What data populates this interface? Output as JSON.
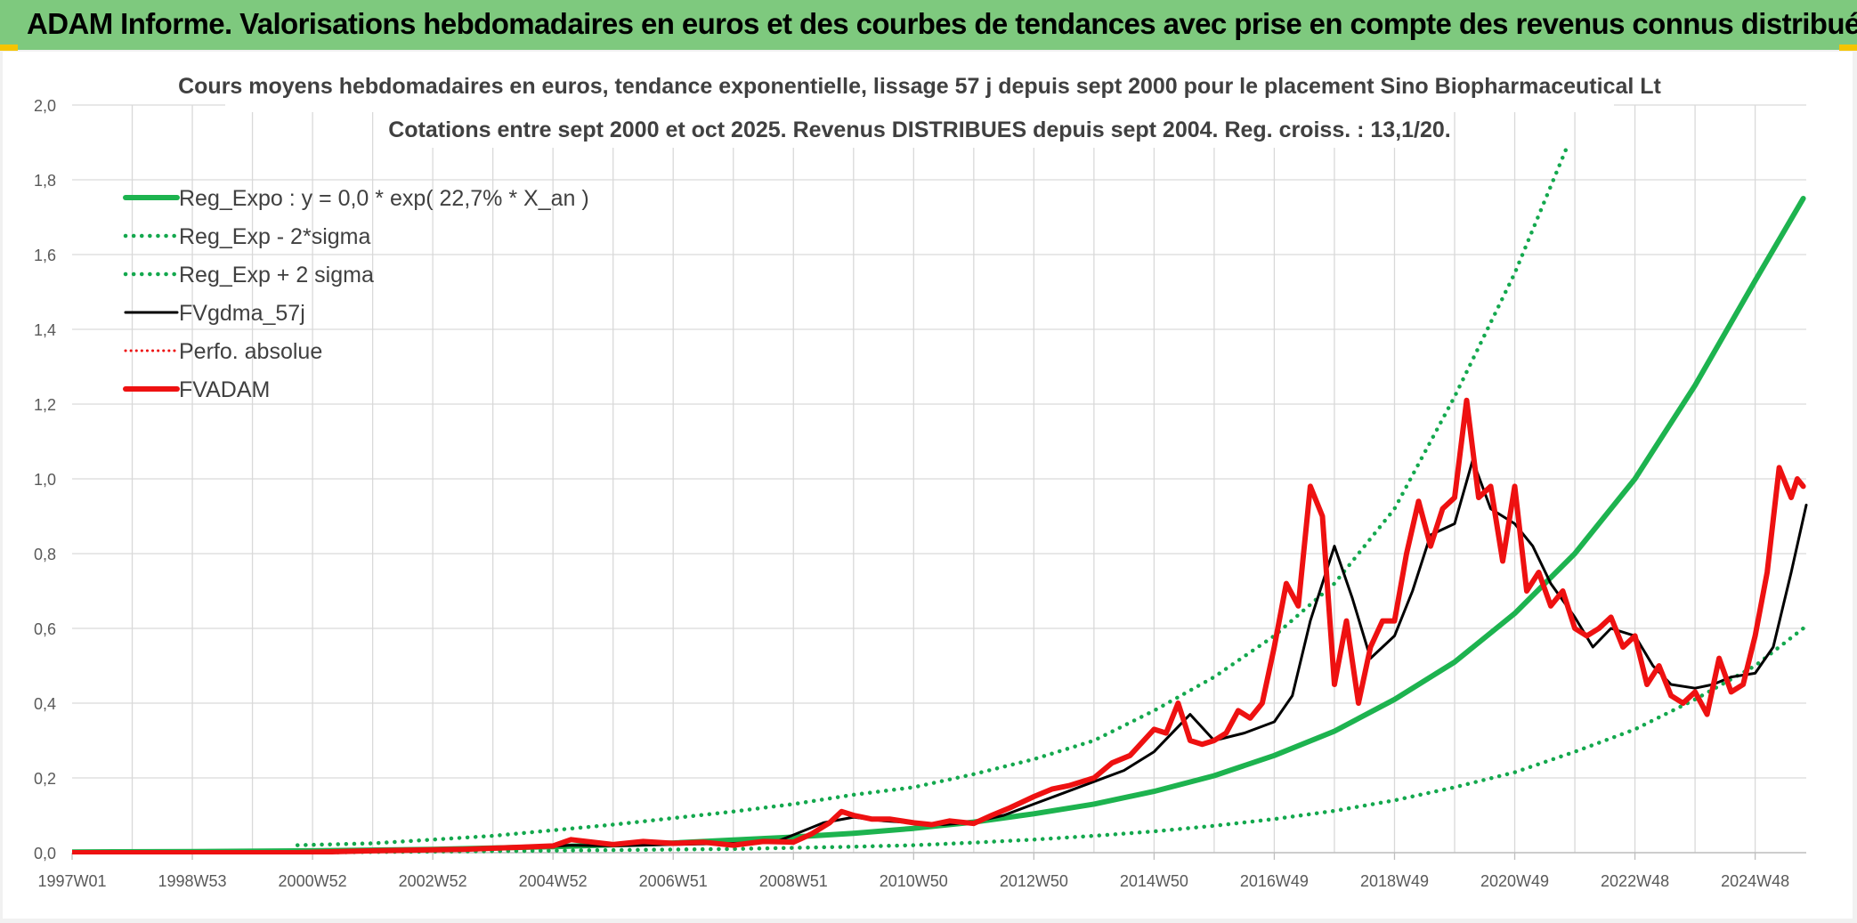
{
  "banner": {
    "title": "ADAM Informe. Valorisations hebdomadaires en euros et des courbes de tendances avec prise en compte des revenus connus distribués"
  },
  "colors": {
    "banner_bg": "#7ec97e",
    "reg_expo": "#1db34f",
    "band": "#14a84e",
    "fvgdma": "#000000",
    "fvadam": "#ee1111",
    "perfo": "#ee1111",
    "grid": "#d9d9d9"
  },
  "chart_data": {
    "type": "line",
    "title": "Cours moyens hebdomadaires en euros, tendance exponentielle, lissage 57 j depuis sept 2000 pour le placement Sino Biopharmaceutical Lt",
    "subtitle": "Cotations entre sept 2000 et oct 2025. Revenus DISTRIBUES depuis sept 2004. Reg. croiss. : 13,1/20.",
    "xlabel": "",
    "ylabel": "",
    "ylim": [
      0,
      2.0
    ],
    "xlim": [
      1997.0,
      2025.85
    ],
    "y_ticks": [
      "0,0",
      "0,2",
      "0,4",
      "0,6",
      "0,8",
      "1,0",
      "1,2",
      "1,4",
      "1,6",
      "1,8",
      "2,0"
    ],
    "x_ticks": [
      {
        "label": "1997W01",
        "x": 1997.0
      },
      {
        "label": "1998W53",
        "x": 1999.0
      },
      {
        "label": "2000W52",
        "x": 2001.0
      },
      {
        "label": "2002W52",
        "x": 2003.0
      },
      {
        "label": "2004W52",
        "x": 2005.0
      },
      {
        "label": "2006W51",
        "x": 2007.0
      },
      {
        "label": "2008W51",
        "x": 2009.0
      },
      {
        "label": "2010W50",
        "x": 2011.0
      },
      {
        "label": "2012W50",
        "x": 2013.0
      },
      {
        "label": "2014W50",
        "x": 2015.0
      },
      {
        "label": "2016W49",
        "x": 2017.0
      },
      {
        "label": "2018W49",
        "x": 2019.0
      },
      {
        "label": "2020W49",
        "x": 2021.0
      },
      {
        "label": "2022W48",
        "x": 2023.0
      },
      {
        "label": "2024W48",
        "x": 2025.0
      }
    ],
    "grid": true,
    "legend_position": "top-left",
    "series": [
      {
        "name": "Reg_Expo : y = 0,0 * exp( 22,7% *  X_an )",
        "style": "solid-thick",
        "color": "#1db34f",
        "x": [
          1997.0,
          1999.0,
          2001.0,
          2003.0,
          2005.0,
          2007.0,
          2009.0,
          2010.0,
          2011.0,
          2012.0,
          2013.0,
          2014.0,
          2015.0,
          2016.0,
          2017.0,
          2018.0,
          2019.0,
          2020.0,
          2021.0,
          2022.0,
          2023.0,
          2024.0,
          2025.0,
          2025.8
        ],
        "values": [
          0.002,
          0.003,
          0.005,
          0.009,
          0.016,
          0.026,
          0.042,
          0.052,
          0.065,
          0.082,
          0.104,
          0.13,
          0.164,
          0.206,
          0.26,
          0.325,
          0.41,
          0.51,
          0.64,
          0.8,
          1.0,
          1.25,
          1.53,
          1.75
        ]
      },
      {
        "name": "Reg_Exp - 2*sigma",
        "style": "dotted",
        "color": "#14a84e",
        "x": [
          2000.75,
          2002.0,
          2004.0,
          2006.0,
          2008.0,
          2010.0,
          2011.0,
          2012.0,
          2013.0,
          2014.0,
          2015.0,
          2016.0,
          2017.0,
          2018.0,
          2019.0,
          2020.0,
          2021.0,
          2022.0,
          2023.0,
          2024.0,
          2025.0,
          2025.8
        ],
        "values": [
          0.0,
          0.002,
          0.004,
          0.007,
          0.01,
          0.016,
          0.02,
          0.027,
          0.035,
          0.045,
          0.057,
          0.072,
          0.09,
          0.112,
          0.14,
          0.175,
          0.215,
          0.27,
          0.33,
          0.41,
          0.5,
          0.6
        ]
      },
      {
        "name": "Reg_Exp + 2 sigma",
        "style": "dotted",
        "color": "#14a84e",
        "x": [
          2000.75,
          2002.0,
          2004.0,
          2006.0,
          2008.0,
          2009.0,
          2010.0,
          2011.0,
          2012.0,
          2013.0,
          2014.0,
          2015.0,
          2016.0,
          2017.0,
          2018.0,
          2019.0,
          2020.0,
          2021.0,
          2021.85
        ],
        "values": [
          0.02,
          0.025,
          0.045,
          0.075,
          0.11,
          0.13,
          0.155,
          0.175,
          0.21,
          0.25,
          0.3,
          0.38,
          0.47,
          0.58,
          0.72,
          0.92,
          1.22,
          1.55,
          1.88
        ]
      },
      {
        "name": "FVgdma_57j",
        "style": "solid",
        "color": "#000000",
        "x": [
          1997.0,
          2000.7,
          2002.0,
          2003.5,
          2004.5,
          2005.3,
          2006.0,
          2007.0,
          2008.0,
          2008.7,
          2009.5,
          2010.0,
          2010.5,
          2011.0,
          2011.5,
          2012.0,
          2012.5,
          2013.0,
          2013.5,
          2014.0,
          2014.5,
          2015.0,
          2015.3,
          2015.6,
          2016.0,
          2016.5,
          2017.0,
          2017.3,
          2017.6,
          2018.0,
          2018.3,
          2018.6,
          2019.0,
          2019.3,
          2019.6,
          2020.0,
          2020.3,
          2020.6,
          2021.0,
          2021.3,
          2021.6,
          2022.0,
          2022.3,
          2022.6,
          2023.0,
          2023.3,
          2023.6,
          2024.0,
          2024.3,
          2024.6,
          2025.0,
          2025.3,
          2025.6,
          2025.85
        ],
        "values": [
          0.0,
          0.0,
          0.005,
          0.008,
          0.012,
          0.02,
          0.018,
          0.022,
          0.025,
          0.028,
          0.08,
          0.095,
          0.085,
          0.08,
          0.075,
          0.082,
          0.1,
          0.13,
          0.16,
          0.19,
          0.22,
          0.27,
          0.32,
          0.37,
          0.3,
          0.32,
          0.35,
          0.42,
          0.62,
          0.82,
          0.68,
          0.52,
          0.58,
          0.7,
          0.85,
          0.88,
          1.05,
          0.92,
          0.88,
          0.82,
          0.72,
          0.63,
          0.55,
          0.6,
          0.58,
          0.5,
          0.45,
          0.44,
          0.45,
          0.47,
          0.48,
          0.55,
          0.75,
          0.93
        ]
      },
      {
        "name": "Perfo. absolue",
        "style": "dotted-thin",
        "color": "#ee1111",
        "x": [],
        "values": []
      },
      {
        "name": "FVADAM",
        "style": "solid-thick",
        "color": "#ee1111",
        "x": [
          1997.0,
          2000.7,
          2002.0,
          2003.5,
          2004.5,
          2005.0,
          2005.3,
          2006.0,
          2006.5,
          2007.0,
          2007.5,
          2008.0,
          2008.5,
          2009.0,
          2009.3,
          2009.6,
          2009.8,
          2010.0,
          2010.3,
          2010.6,
          2011.0,
          2011.3,
          2011.6,
          2012.0,
          2012.3,
          2012.6,
          2013.0,
          2013.3,
          2013.6,
          2014.0,
          2014.3,
          2014.6,
          2015.0,
          2015.2,
          2015.4,
          2015.6,
          2015.8,
          2016.0,
          2016.2,
          2016.4,
          2016.6,
          2016.8,
          2017.0,
          2017.2,
          2017.4,
          2017.6,
          2017.8,
          2018.0,
          2018.2,
          2018.4,
          2018.6,
          2018.8,
          2019.0,
          2019.2,
          2019.4,
          2019.6,
          2019.8,
          2020.0,
          2020.2,
          2020.4,
          2020.6,
          2020.8,
          2021.0,
          2021.2,
          2021.4,
          2021.6,
          2021.8,
          2022.0,
          2022.2,
          2022.4,
          2022.6,
          2022.8,
          2023.0,
          2023.2,
          2023.4,
          2023.6,
          2023.8,
          2024.0,
          2024.2,
          2024.4,
          2024.6,
          2024.8,
          2025.0,
          2025.2,
          2025.4,
          2025.6,
          2025.7,
          2025.8
        ],
        "values": [
          0.0,
          0.0,
          0.005,
          0.009,
          0.015,
          0.018,
          0.035,
          0.022,
          0.03,
          0.025,
          0.028,
          0.02,
          0.03,
          0.028,
          0.05,
          0.08,
          0.11,
          0.1,
          0.09,
          0.09,
          0.08,
          0.075,
          0.085,
          0.078,
          0.1,
          0.12,
          0.15,
          0.17,
          0.18,
          0.2,
          0.24,
          0.26,
          0.33,
          0.32,
          0.4,
          0.3,
          0.29,
          0.3,
          0.32,
          0.38,
          0.36,
          0.4,
          0.55,
          0.72,
          0.66,
          0.98,
          0.9,
          0.45,
          0.62,
          0.4,
          0.55,
          0.62,
          0.62,
          0.8,
          0.94,
          0.82,
          0.92,
          0.95,
          1.21,
          0.95,
          0.98,
          0.78,
          0.98,
          0.7,
          0.75,
          0.66,
          0.7,
          0.6,
          0.58,
          0.6,
          0.63,
          0.55,
          0.58,
          0.45,
          0.5,
          0.42,
          0.4,
          0.43,
          0.37,
          0.52,
          0.43,
          0.45,
          0.58,
          0.75,
          1.03,
          0.95,
          1.0,
          0.98
        ]
      }
    ]
  }
}
